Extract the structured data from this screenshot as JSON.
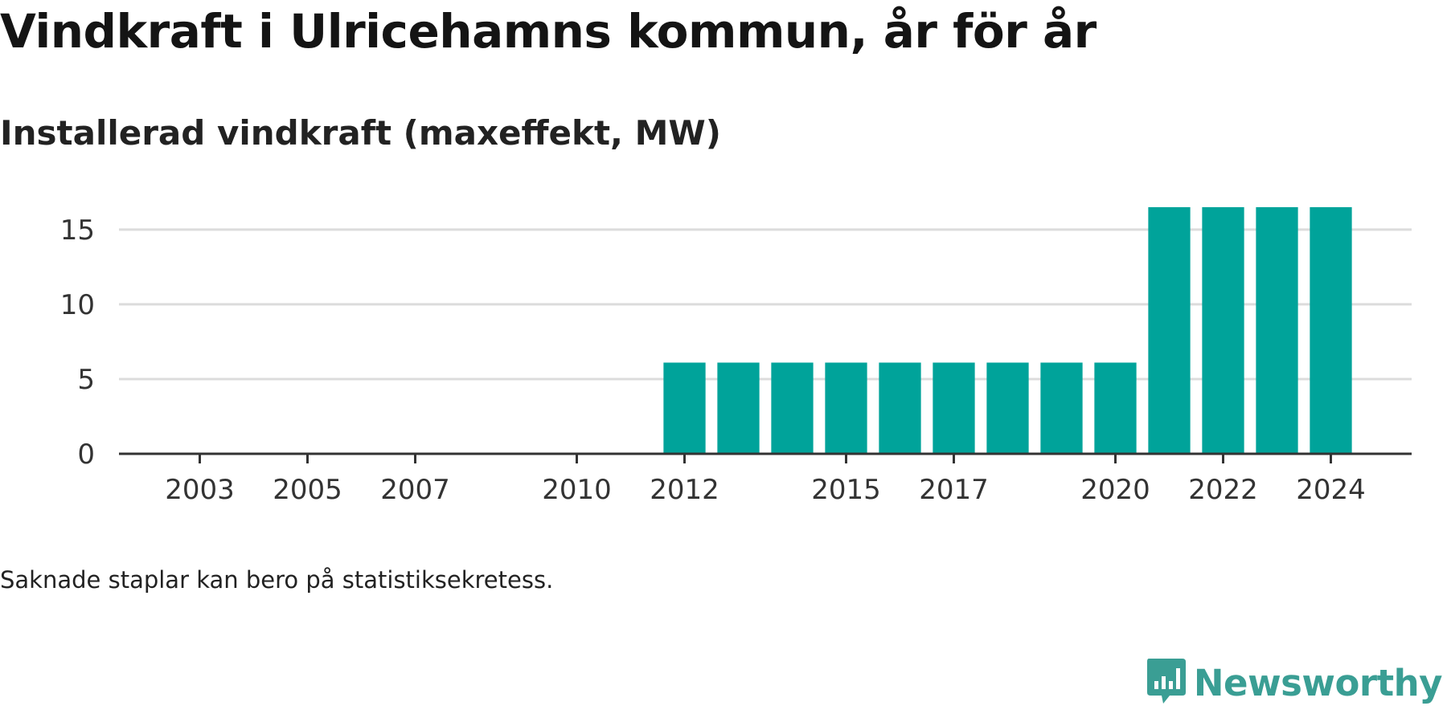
{
  "title": "Vindkraft i Ulricehamns kommun, år för år",
  "subtitle": "Installerad vindkraft (maxeffekt, MW)",
  "note": "Saknade staplar kan bero på statistiksekretess.",
  "brand": {
    "name": "Newsworthy",
    "icon": "newsworthy-logo-icon",
    "color": "#3a9e94"
  },
  "colors": {
    "bar": "#00a39a",
    "grid": "#dcdcdc",
    "axis": "#333333"
  },
  "chart_data": {
    "type": "bar",
    "title": "Installerad vindkraft (maxeffekt, MW)",
    "xlabel": "",
    "ylabel": "",
    "x_domain": [
      2001.5,
      2025.5
    ],
    "categories": [
      "2012",
      "2013",
      "2014",
      "2015",
      "2016",
      "2017",
      "2018",
      "2019",
      "2020",
      "2021",
      "2022",
      "2023",
      "2024"
    ],
    "values": [
      6.1,
      6.1,
      6.1,
      6.1,
      6.1,
      6.1,
      6.1,
      6.1,
      6.1,
      16.5,
      16.5,
      16.5,
      16.5
    ],
    "ylim": [
      0,
      18
    ],
    "yticks": [
      0,
      5,
      10,
      15
    ],
    "xticks": [
      2003,
      2005,
      2007,
      2010,
      2012,
      2015,
      2017,
      2020,
      2022,
      2024
    ],
    "grid": true,
    "legend": "none"
  }
}
